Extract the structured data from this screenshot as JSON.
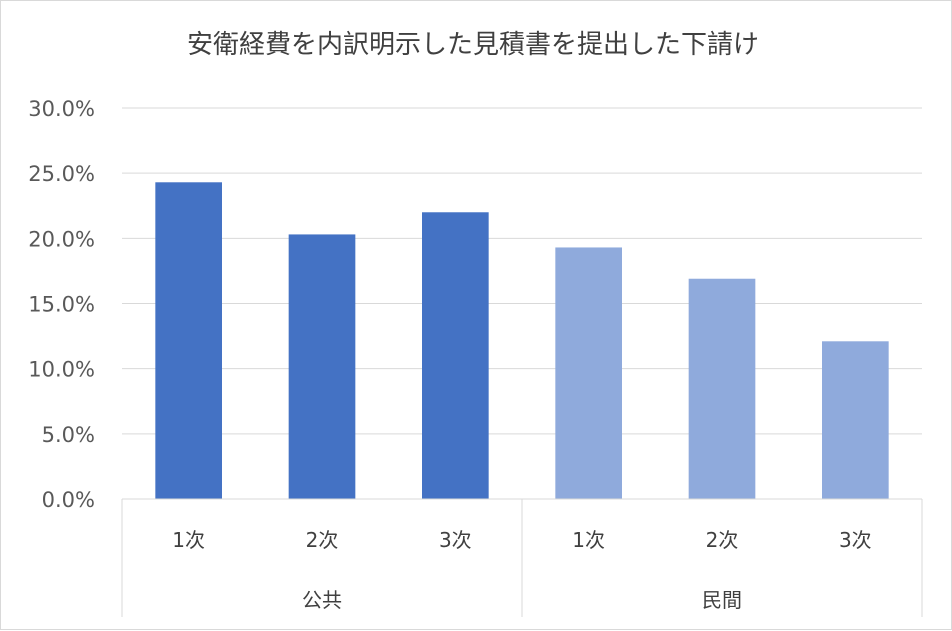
{
  "chart_data": {
    "type": "bar",
    "title": "安衛経費を内訳明示した見積書を提出した下請け",
    "xlabel": "",
    "ylabel": "",
    "ylim": [
      0,
      0.3
    ],
    "yticks": [
      {
        "value": 0.0,
        "label": "0.0%"
      },
      {
        "value": 0.05,
        "label": "5.0%"
      },
      {
        "value": 0.1,
        "label": "10.0%"
      },
      {
        "value": 0.15,
        "label": "15.0%"
      },
      {
        "value": 0.2,
        "label": "20.0%"
      },
      {
        "value": 0.25,
        "label": "25.0%"
      },
      {
        "value": 0.3,
        "label": "30.0%"
      }
    ],
    "grid": true,
    "legend": "none",
    "groups": [
      {
        "label": "公共",
        "color": "#4472c4",
        "categories": [
          "1次",
          "2次",
          "3次"
        ],
        "values": [
          0.243,
          0.203,
          0.22
        ]
      },
      {
        "label": "民間",
        "color": "#8faadc",
        "categories": [
          "1次",
          "2次",
          "3次"
        ],
        "values": [
          0.193,
          0.169,
          0.121
        ]
      }
    ]
  }
}
